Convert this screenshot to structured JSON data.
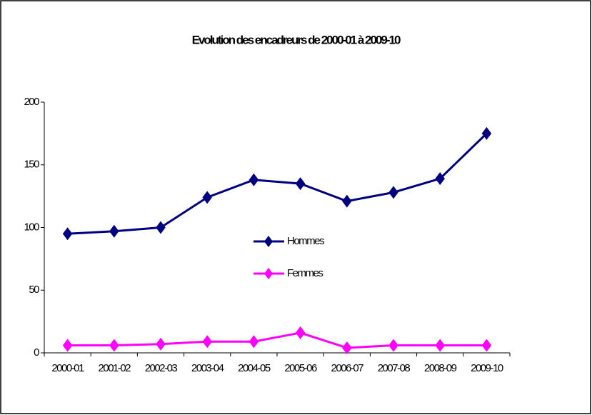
{
  "chart_data": {
    "type": "line",
    "title": "Evolution des encadreurs de 2000-01 à 2009-10",
    "categories": [
      "2000-01",
      "2001-02",
      "2002-03",
      "2003-04",
      "2004-05",
      "2005-06",
      "2006-07",
      "2007-08",
      "2008-09",
      "2009-10"
    ],
    "series": [
      {
        "name": "Hommes",
        "color": "#000080",
        "values": [
          95,
          97,
          100,
          124,
          138,
          135,
          121,
          128,
          139,
          175
        ]
      },
      {
        "name": "Femmes",
        "color": "#ff00ff",
        "values": [
          6,
          6,
          7,
          9,
          9,
          16,
          4,
          6,
          6,
          6
        ]
      }
    ],
    "ylim": [
      0,
      200
    ],
    "yticks": [
      0,
      50,
      100,
      150,
      200
    ],
    "grid": false,
    "legend": "center"
  }
}
